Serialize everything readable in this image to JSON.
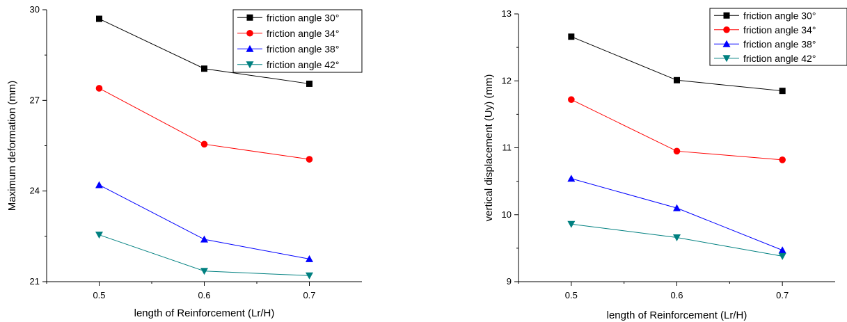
{
  "chart_data": [
    {
      "type": "line",
      "title": "",
      "xlabel": "length of Reinforcement (Lr/H)",
      "ylabel": "Maximum deformation (mm)",
      "x": [
        0.5,
        0.6,
        0.7
      ],
      "xlim": [
        0.45,
        0.75
      ],
      "ylim": [
        21,
        30
      ],
      "xticks": [
        0.5,
        0.6,
        0.7
      ],
      "yticks": [
        21,
        24,
        27,
        30
      ],
      "xtick_labels": [
        "0.5",
        "0.6",
        "0.7"
      ],
      "ytick_labels": [
        "21",
        "24",
        "27",
        "30"
      ],
      "grid": false,
      "legend_position": "top-right",
      "series": [
        {
          "name": "friction angle 30°",
          "values": [
            29.7,
            28.05,
            27.55
          ],
          "color": "#000000",
          "marker": "square"
        },
        {
          "name": "friction angle 34°",
          "values": [
            27.4,
            25.55,
            25.05
          ],
          "color": "#ff0000",
          "marker": "circle"
        },
        {
          "name": "friction angle 38°",
          "values": [
            24.2,
            22.4,
            21.75
          ],
          "color": "#0000ff",
          "marker": "triangle-up"
        },
        {
          "name": "friction angle 42°",
          "values": [
            22.55,
            21.35,
            21.2
          ],
          "color": "#008080",
          "marker": "triangle-down"
        }
      ]
    },
    {
      "type": "line",
      "title": "",
      "xlabel": "length of Reinforcement (Lr/H)",
      "ylabel": "vertical displacement (Uy) (mm)",
      "x": [
        0.5,
        0.6,
        0.7
      ],
      "xlim": [
        0.45,
        0.75
      ],
      "ylim": [
        9,
        13
      ],
      "xticks": [
        0.5,
        0.6,
        0.7
      ],
      "yticks": [
        9,
        10,
        11,
        12,
        13
      ],
      "xtick_labels": [
        "0.5",
        "0.6",
        "0.7"
      ],
      "ytick_labels": [
        "9",
        "10",
        "11",
        "12",
        "13"
      ],
      "grid": false,
      "legend_position": "top-right",
      "series": [
        {
          "name": "friction angle 30°",
          "values": [
            12.66,
            12.01,
            11.85
          ],
          "color": "#000000",
          "marker": "square"
        },
        {
          "name": "friction angle 34°",
          "values": [
            11.72,
            10.95,
            10.82
          ],
          "color": "#ff0000",
          "marker": "circle"
        },
        {
          "name": "friction angle 38°",
          "values": [
            10.54,
            10.1,
            9.47
          ],
          "color": "#0000ff",
          "marker": "triangle-up"
        },
        {
          "name": "friction angle 42°",
          "values": [
            9.86,
            9.66,
            9.38
          ],
          "color": "#008080",
          "marker": "triangle-down"
        }
      ]
    }
  ]
}
